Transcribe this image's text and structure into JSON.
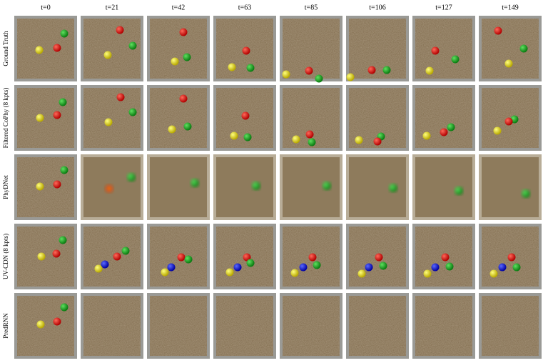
{
  "columns": [
    "t=0",
    "t=21",
    "t=42",
    "t=63",
    "t=85",
    "t=106",
    "t=127",
    "t=149"
  ],
  "rows": [
    "Ground Truth",
    "Filtered CoPhy (8 kpts)",
    "PhyDNet",
    "UV-CDN (8 kpts)",
    "PredRNN"
  ]
}
